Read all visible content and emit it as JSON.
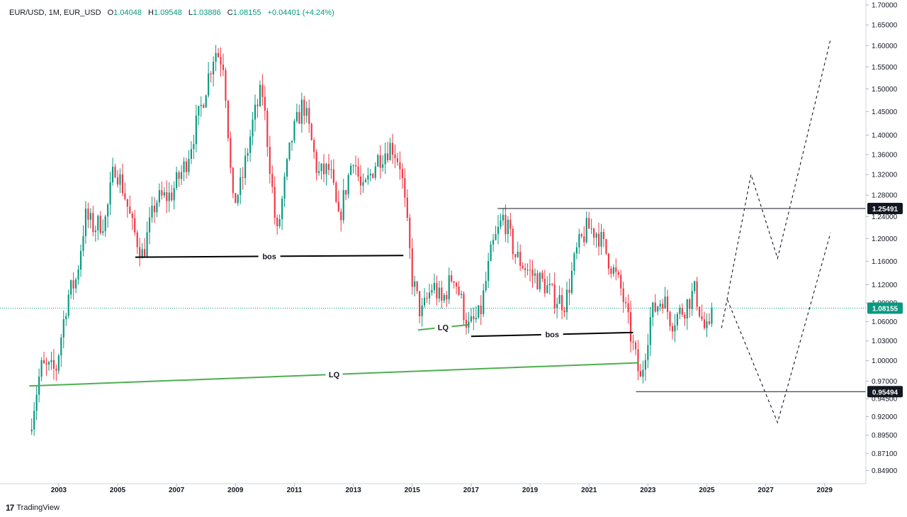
{
  "header": {
    "symbol": "EUR/USD, 1M, EUR_USD",
    "o_label": "O",
    "o_value": "1.04048",
    "h_label": "H",
    "h_value": "1.09548",
    "l_label": "L",
    "l_value": "1.03886",
    "c_label": "C",
    "c_value": "1.08155",
    "change": "+0.04401 (+4.24%)"
  },
  "branding": {
    "logo": "TradingView"
  },
  "colors": {
    "up": "#089981",
    "down": "#f23645",
    "annot_green": "#4caf50",
    "line": "#000000",
    "axis_text": "#131722"
  },
  "chart_data": {
    "type": "candlestick",
    "timeframe": "1M",
    "x_range": [
      2001.2,
      2030.4
    ],
    "y_scale": "log",
    "y_range": [
      0.8325,
      1.7125
    ],
    "y_ticks": [
      "1.70000",
      "1.65000",
      "1.60000",
      "1.55000",
      "1.50000",
      "1.45000",
      "1.40000",
      "1.36000",
      "1.32000",
      "1.28000",
      "1.24000",
      "1.20000",
      "1.16000",
      "1.12000",
      "1.09000",
      "1.06000",
      "1.03000",
      "1.00000",
      "0.97000",
      "0.94500",
      "0.92000",
      "0.89500",
      "0.87100",
      "0.84900"
    ],
    "x_ticks": [
      "2003",
      "2005",
      "2007",
      "2009",
      "2011",
      "2013",
      "2015",
      "2017",
      "2019",
      "2021",
      "2023",
      "2025",
      "2027",
      "2029"
    ],
    "price_path": [
      [
        2002.0,
        0.9
      ],
      [
        2002.4,
        0.99
      ],
      [
        2002.9,
        0.985
      ],
      [
        2003.3,
        1.1
      ],
      [
        2003.6,
        1.13
      ],
      [
        2003.9,
        1.24
      ],
      [
        2004.2,
        1.22
      ],
      [
        2004.6,
        1.235
      ],
      [
        2004.9,
        1.34
      ],
      [
        2005.2,
        1.29
      ],
      [
        2005.5,
        1.22
      ],
      [
        2005.85,
        1.17
      ],
      [
        2006.3,
        1.27
      ],
      [
        2006.8,
        1.28
      ],
      [
        2007.3,
        1.34
      ],
      [
        2007.8,
        1.45
      ],
      [
        2008.3,
        1.59
      ],
      [
        2008.6,
        1.56
      ],
      [
        2008.9,
        1.26
      ],
      [
        2009.2,
        1.3
      ],
      [
        2009.6,
        1.43
      ],
      [
        2009.9,
        1.5
      ],
      [
        2010.4,
        1.2
      ],
      [
        2010.9,
        1.39
      ],
      [
        2011.3,
        1.47
      ],
      [
        2011.8,
        1.32
      ],
      [
        2012.2,
        1.33
      ],
      [
        2012.5,
        1.23
      ],
      [
        2013.0,
        1.36
      ],
      [
        2013.3,
        1.28
      ],
      [
        2013.8,
        1.35
      ],
      [
        2014.3,
        1.38
      ],
      [
        2014.6,
        1.34
      ],
      [
        2015.0,
        1.13
      ],
      [
        2015.3,
        1.07
      ],
      [
        2015.7,
        1.12
      ],
      [
        2016.0,
        1.09
      ],
      [
        2016.4,
        1.14
      ],
      [
        2016.9,
        1.05
      ],
      [
        2017.3,
        1.07
      ],
      [
        2017.7,
        1.18
      ],
      [
        2018.1,
        1.24
      ],
      [
        2018.5,
        1.17
      ],
      [
        2019.0,
        1.14
      ],
      [
        2019.5,
        1.12
      ],
      [
        2019.8,
        1.1
      ],
      [
        2020.2,
        1.09
      ],
      [
        2020.6,
        1.18
      ],
      [
        2020.95,
        1.22
      ],
      [
        2021.3,
        1.21
      ],
      [
        2021.7,
        1.16
      ],
      [
        2022.1,
        1.11
      ],
      [
        2022.5,
        1.02
      ],
      [
        2022.75,
        0.97
      ],
      [
        2023.1,
        1.07
      ],
      [
        2023.5,
        1.1
      ],
      [
        2023.8,
        1.06
      ],
      [
        2024.2,
        1.08
      ],
      [
        2024.6,
        1.11
      ],
      [
        2024.9,
        1.05
      ],
      [
        2025.1,
        1.04
      ],
      [
        2025.2,
        1.08
      ]
    ],
    "current_price": "1.08155",
    "annotations": [
      {
        "type": "line",
        "label": "bos",
        "color": "black",
        "x1": 2005.6,
        "y1": 1.167,
        "x2": 2014.7,
        "y2": 1.17
      },
      {
        "type": "line",
        "label": "bos",
        "color": "black",
        "x1": 2017.0,
        "y1": 1.037,
        "x2": 2022.5,
        "y2": 1.043
      },
      {
        "type": "line",
        "label": "LQ",
        "color": "green",
        "x1": 2002.0,
        "y1": 0.963,
        "x2": 2022.7,
        "y2": 0.997
      },
      {
        "type": "line",
        "label": "LQ",
        "color": "green",
        "x1": 2015.2,
        "y1": 1.047,
        "x2": 2016.9,
        "y2": 1.055
      }
    ],
    "levels": [
      {
        "label": "1.25491",
        "value": 1.25491,
        "x_start": 2017.9
      },
      {
        "label": "0.95494",
        "value": 0.95494,
        "x_start": 2022.6
      }
    ],
    "projections": [
      {
        "name": "bullish",
        "style": "dashed",
        "points": [
          [
            2025.5,
            1.05
          ],
          [
            2026.5,
            1.32
          ],
          [
            2027.4,
            1.165
          ],
          [
            2029.2,
            1.615
          ]
        ]
      },
      {
        "name": "bearish",
        "style": "dashed",
        "points": [
          [
            2025.7,
            1.095
          ],
          [
            2027.4,
            0.912
          ],
          [
            2029.2,
            1.21
          ]
        ]
      }
    ]
  }
}
